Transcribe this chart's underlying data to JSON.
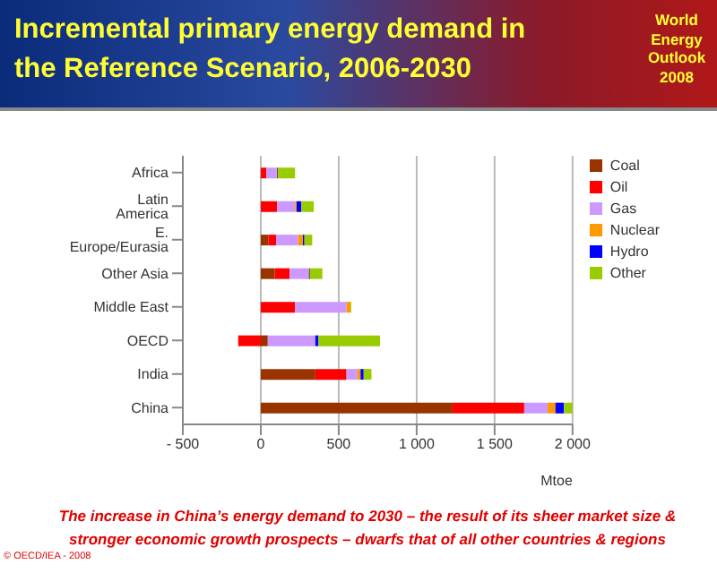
{
  "chart_data": {
    "type": "bar",
    "orientation": "horizontal",
    "stacked": true,
    "title": "Incremental primary energy demand in the Reference Scenario, 2006-2030",
    "xlabel": "Mtoe",
    "categories": [
      "Africa",
      "Latin America",
      "E. Europe/Eurasia",
      "Other Asia",
      "Middle East",
      "OECD",
      "India",
      "China"
    ],
    "series": [
      {
        "name": "Coal",
        "color": "#993300",
        "values": [
          0,
          0,
          50,
          90,
          0,
          45,
          350,
          1230
        ]
      },
      {
        "name": "Oil",
        "color": "#ff0000",
        "values": [
          35,
          105,
          50,
          95,
          220,
          -145,
          200,
          460
        ]
      },
      {
        "name": "Gas",
        "color": "#cc99ff",
        "values": [
          65,
          115,
          140,
          120,
          330,
          305,
          70,
          150
        ]
      },
      {
        "name": "Nuclear",
        "color": "#ff9900",
        "values": [
          5,
          10,
          30,
          5,
          25,
          0,
          20,
          50
        ]
      },
      {
        "name": "Hydro",
        "color": "#0000ff",
        "values": [
          5,
          30,
          10,
          5,
          0,
          20,
          20,
          55
        ]
      },
      {
        "name": "Other",
        "color": "#99cc00",
        "values": [
          110,
          80,
          50,
          80,
          5,
          395,
          50,
          55
        ]
      }
    ],
    "xlim": [
      -500,
      2000
    ],
    "xticks": [
      {
        "value": -500,
        "label": "- 500"
      },
      0,
      500,
      {
        "value": 1000,
        "label": "1 000"
      },
      {
        "value": 1500,
        "label": "1 500"
      },
      {
        "value": 2000,
        "label": "2 000"
      }
    ],
    "grid": "x",
    "legend": "right",
    "annotations": [
      "World Energy Outlook 2008",
      "The increase in China’s energy demand to 2030 – the result of its sheer market size & stronger economic growth prospects – dwarfs that of all other countries & regions",
      "© OECD/IEA - 2008"
    ]
  }
}
